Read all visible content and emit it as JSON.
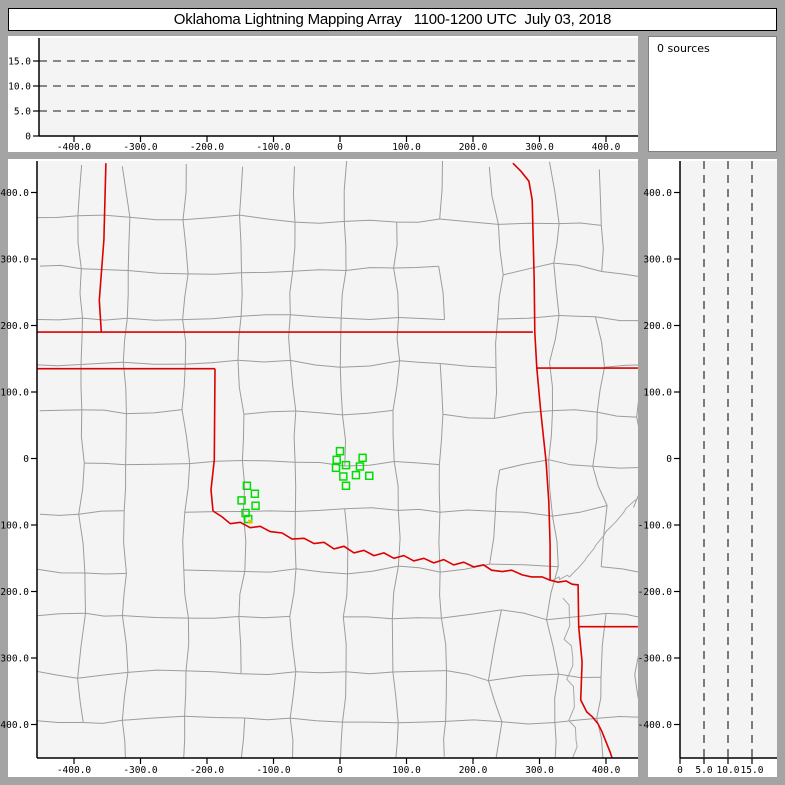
{
  "title": "Oklahoma Lightning Mapping Array   1100-1200 UTC  July 03, 2018",
  "sources_panel": {
    "label": "0 sources"
  },
  "colors": {
    "frame": "#a4a4a4",
    "panel_bg": "#ffffff",
    "plot_bg": "#f4f4f4",
    "county_line": "#9c9c9c",
    "state_border": "#dd0000",
    "river_line": "#a8a8a8",
    "station_marker": "#00dd00",
    "station_marker_alt": "#cccc00",
    "axis": "#000000",
    "dashed_line": "#1a1a1a"
  },
  "chart_data": [
    {
      "type": "scatter",
      "panel": "altitude-vs-eastwest",
      "grid": "dashed horizontal reference lines",
      "legend_position": "none",
      "xlim": [
        -456,
        448
      ],
      "ylim": [
        0,
        19.4
      ],
      "x_ticks": [
        -400,
        -300,
        -200,
        -100,
        0,
        100,
        200,
        300,
        400
      ],
      "x_tick_labels": [
        "-400.0",
        "-300.0",
        "-200.0",
        "-100.0",
        "0",
        "100.0",
        "200.0",
        "300.0",
        "400.0"
      ],
      "y_ticks": [
        15,
        10,
        5,
        0
      ],
      "y_tick_labels": [
        "15.0",
        "10.0",
        "5.0",
        "0"
      ],
      "dashed_y_values": [
        5,
        10,
        15
      ],
      "points": []
    },
    {
      "type": "scatter",
      "panel": "plan-view-map",
      "grid": "county and state boundaries",
      "legend_position": "none",
      "xlim": [
        -456,
        448
      ],
      "ylim": [
        -450,
        444
      ],
      "x_ticks": [
        -400,
        -300,
        -200,
        -100,
        0,
        100,
        200,
        300,
        400
      ],
      "x_tick_labels": [
        "-400.0",
        "-300.0",
        "-200.0",
        "-100.0",
        "0",
        "100.0",
        "200.0",
        "300.0",
        "400.0"
      ],
      "y_ticks": [
        400,
        300,
        200,
        100,
        0,
        -100,
        -200,
        -300,
        -400
      ],
      "y_tick_labels": [
        "400.0",
        "300.0",
        "200.0",
        "100.0",
        "0",
        "-100.0",
        "-200.0",
        "-300.0",
        "-400.0"
      ],
      "points": [],
      "stations_green": [
        [
          0,
          11
        ],
        [
          -5,
          -2
        ],
        [
          9,
          -10
        ],
        [
          -6,
          -14
        ],
        [
          5,
          -27
        ],
        [
          24,
          -25
        ],
        [
          34,
          1
        ],
        [
          30,
          -12
        ],
        [
          44,
          -26
        ],
        [
          9,
          -41
        ],
        [
          -140,
          -41
        ],
        [
          -128,
          -53
        ],
        [
          -148,
          -63
        ],
        [
          -127,
          -71
        ],
        [
          -142,
          -82
        ],
        [
          -138,
          -91
        ]
      ],
      "stations_yellow": [
        [
          -135,
          -95
        ]
      ],
      "state_borders": [
        {
          "name": "west-vertical-border",
          "pts": [
            [
              -352,
              444
            ],
            [
              -355,
              329
            ],
            [
              -362,
              238
            ],
            [
              -359,
              190
            ]
          ]
        },
        {
          "name": "north-lat-border",
          "pts": [
            [
              -456,
              190
            ],
            [
              290,
              190
            ]
          ]
        },
        {
          "name": "west-lat-border",
          "pts": [
            [
              -456,
              135
            ],
            [
              -188,
              135
            ]
          ]
        },
        {
          "name": "panhandle-east-border",
          "pts": [
            [
              -188,
              135
            ],
            [
              -189,
              -2
            ],
            [
              -194,
              -47
            ],
            [
              -191,
              -79
            ]
          ]
        },
        {
          "name": "red-river-border",
          "pts": [
            [
              -191,
              -79
            ],
            [
              -177,
              -88
            ],
            [
              -165,
              -98
            ],
            [
              -150,
              -96
            ],
            [
              -135,
              -104
            ],
            [
              -120,
              -102
            ],
            [
              -105,
              -110
            ],
            [
              -87,
              -112
            ],
            [
              -72,
              -121
            ],
            [
              -54,
              -120
            ],
            [
              -39,
              -128
            ],
            [
              -24,
              -126
            ],
            [
              -9,
              -136
            ],
            [
              6,
              -132
            ],
            [
              21,
              -142
            ],
            [
              36,
              -138
            ],
            [
              51,
              -146
            ],
            [
              66,
              -142
            ],
            [
              81,
              -150
            ],
            [
              96,
              -146
            ],
            [
              111,
              -154
            ],
            [
              126,
              -150
            ],
            [
              141,
              -157
            ],
            [
              156,
              -152
            ],
            [
              171,
              -160
            ],
            [
              186,
              -156
            ],
            [
              201,
              -163
            ],
            [
              216,
              -160
            ],
            [
              228,
              -168
            ],
            [
              244,
              -170
            ],
            [
              258,
              -168
            ],
            [
              274,
              -175
            ],
            [
              288,
              -178
            ],
            [
              304,
              -178
            ],
            [
              316,
              -183
            ]
          ]
        },
        {
          "name": "east-vertical-border",
          "pts": [
            [
              260,
              444
            ],
            [
              272,
              432
            ],
            [
              284,
              417
            ],
            [
              289,
              389
            ],
            [
              292,
              268
            ],
            [
              293,
              190
            ],
            [
              296,
              136
            ],
            [
              302,
              70
            ],
            [
              310,
              -5
            ],
            [
              314,
              -65
            ],
            [
              316,
              -130
            ],
            [
              316,
              -183
            ]
          ]
        },
        {
          "name": "east-lat-border",
          "pts": [
            [
              296,
              136
            ],
            [
              448,
              136
            ]
          ]
        },
        {
          "name": "southeast-river-border",
          "pts": [
            [
              316,
              -183
            ],
            [
              328,
              -186
            ],
            [
              340,
              -184
            ],
            [
              349,
              -189
            ],
            [
              358,
              -190
            ],
            [
              359,
              -253
            ]
          ]
        },
        {
          "name": "southeast-lat-border",
          "pts": [
            [
              359,
              -253
            ],
            [
              448,
              -253
            ]
          ]
        },
        {
          "name": "southeast-vertical-border",
          "pts": [
            [
              359,
              -253
            ],
            [
              364,
              -306
            ],
            [
              362,
              -363
            ],
            [
              371,
              -381
            ],
            [
              380,
              -389
            ],
            [
              388,
              -399
            ],
            [
              394,
              -411
            ],
            [
              400,
              -426
            ],
            [
              406,
              -441
            ],
            [
              409,
              -450
            ]
          ]
        }
      ],
      "rivers": [
        {
          "pts": [
            [
              335,
              -210
            ],
            [
              345,
              -240
            ],
            [
              337,
              -272
            ],
            [
              350,
              -300
            ],
            [
              341,
              -332
            ],
            [
              352,
              -362
            ],
            [
              344,
              -394
            ],
            [
              355,
              -424
            ],
            [
              349,
              -452
            ]
          ]
        },
        {
          "pts": [
            [
              448,
              -60
            ],
            [
              430,
              -75
            ],
            [
              415,
              -95
            ],
            [
              400,
              -110
            ],
            [
              385,
              -130
            ],
            [
              370,
              -150
            ],
            [
              358,
              -165
            ],
            [
              345,
              -178
            ],
            [
              330,
              -182
            ],
            [
              320,
              -183
            ]
          ]
        }
      ]
    },
    {
      "type": "scatter",
      "panel": "altitude-vs-northsouth",
      "grid": "dashed vertical reference lines",
      "legend_position": "none",
      "xlim": [
        0,
        20.2
      ],
      "ylim": [
        -450,
        444
      ],
      "x_ticks": [
        0,
        5,
        10,
        15
      ],
      "x_tick_labels": [
        "0",
        "5.0",
        "10.0",
        "15.0"
      ],
      "y_ticks": [
        400,
        300,
        200,
        100,
        0,
        -100,
        -200,
        -300,
        -400
      ],
      "y_tick_labels": [
        "400.0",
        "300.0",
        "200.0",
        "100.0",
        "0",
        "-100.0",
        "-200.0",
        "-300.0",
        "-400.0"
      ],
      "dashed_x_values": [
        5,
        10,
        15
      ],
      "points": []
    }
  ]
}
